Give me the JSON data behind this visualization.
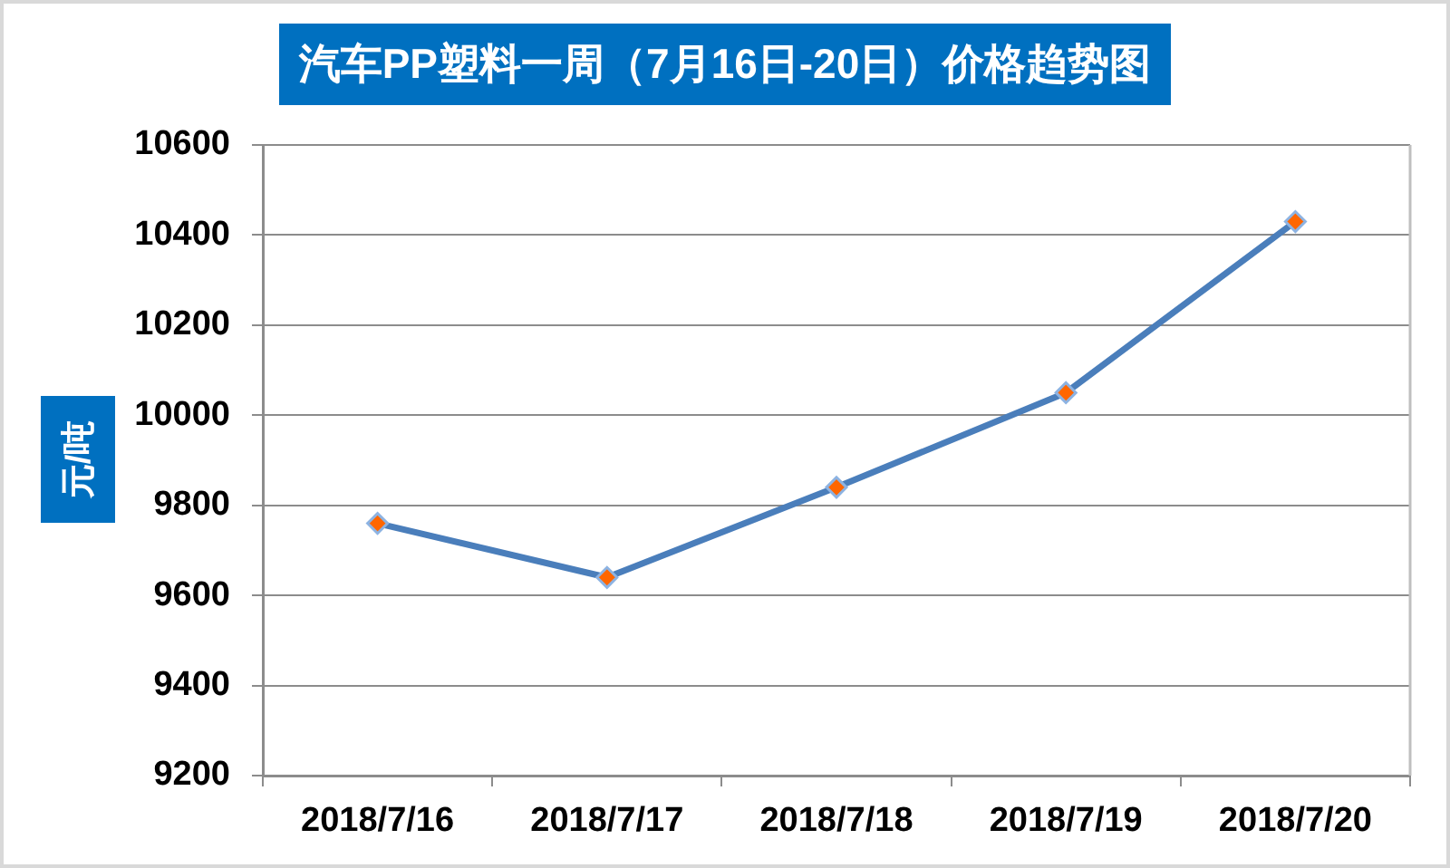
{
  "chart_data": {
    "type": "line",
    "title": "汽车PP塑料一周（7月16日-20日）价格趋势图",
    "ylabel": "元/吨",
    "categories": [
      "2018/7/16",
      "2018/7/17",
      "2018/7/18",
      "2018/7/19",
      "2018/7/20"
    ],
    "series": [
      {
        "color": "#4a7ebb",
        "colors": [
          "#ff6600",
          "#ff6600",
          "#ff6600",
          "#ff6600",
          "#ff6600"
        ],
        "values": [
          9760,
          9640,
          9840,
          10050,
          10430
        ]
      }
    ],
    "ylim": [
      9200,
      10600
    ],
    "yticks": [
      9200,
      9400,
      9600,
      9800,
      10000,
      10200,
      10400,
      10600
    ],
    "grid": "y",
    "marker": "diamond",
    "line_style": "solid"
  }
}
